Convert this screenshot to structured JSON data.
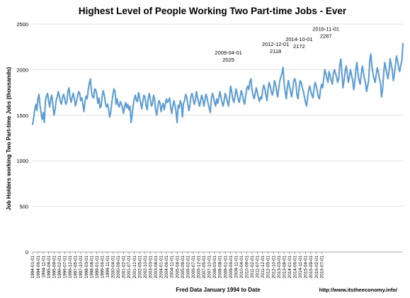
{
  "chart_data": {
    "type": "line",
    "title": "Highest Level of People Working Two Part-time Jobs - Ever",
    "xlabel": "Fred Data January 1994 to Date",
    "ylabel": "Job Holders working Two Part-time Jobs (thousands)",
    "source": "http://www.itstheeconomy.info/",
    "ylim": [
      0,
      2500
    ],
    "y_ticks": [
      0,
      500,
      1000,
      1500,
      2000,
      2500
    ],
    "x_tick_labels": [
      "1994-01-01",
      "1994-06-01",
      "1994-11-01",
      "1995-04-01",
      "1995-09-01",
      "1996-02-01",
      "1996-07-01",
      "1996-12-01",
      "1997-05-01",
      "1997-10-01",
      "1998-03-01",
      "1998-08-01",
      "1999-01-01",
      "1999-06-01",
      "1999-11-01",
      "2000-04-01",
      "2000-09-01",
      "2001-02-01",
      "2001-07-01",
      "2001-12-01",
      "2002-05-01",
      "2002-10-01",
      "2003-03-01",
      "2003-08-01",
      "2004-01-01",
      "2004-06-01",
      "2004-11-01",
      "2005-04-01",
      "2005-09-01",
      "2006-02-01",
      "2006-07-01",
      "2006-12-01",
      "2007-05-01",
      "2007-10-01",
      "2008-03-01",
      "2008-08-01",
      "2009-01-01",
      "2009-06-01",
      "2009-11-01",
      "2010-04-01",
      "2010-09-01",
      "2011-02-01",
      "2011-07-01",
      "2011-12-01",
      "2012-05-01",
      "2012-10-01",
      "2013-03-01",
      "2013-08-01",
      "2014-01-01",
      "2014-06-01",
      "2014-11-01",
      "2015-04-01",
      "2015-09-01",
      "2016-02-01",
      "2016-07-01"
    ],
    "series": [
      {
        "color": "#5b9bd5",
        "start": "1994-01-01",
        "frequency": "monthly",
        "values": [
          1400,
          1470,
          1560,
          1620,
          1550,
          1680,
          1730,
          1600,
          1520,
          1450,
          1530,
          1420,
          1660,
          1710,
          1740,
          1650,
          1590,
          1680,
          1720,
          1610,
          1500,
          1560,
          1660,
          1700,
          1760,
          1710,
          1650,
          1620,
          1700,
          1730,
          1680,
          1620,
          1640,
          1760,
          1800,
          1700,
          1640,
          1700,
          1740,
          1680,
          1600,
          1650,
          1710,
          1760,
          1740,
          1660,
          1690,
          1620,
          1540,
          1650,
          1710,
          1680,
          1780,
          1850,
          1900,
          1760,
          1700,
          1690,
          1790,
          1780,
          1720,
          1630,
          1690,
          1580,
          1600,
          1710,
          1770,
          1720,
          1640,
          1590,
          1620,
          1570,
          1480,
          1530,
          1640,
          1720,
          1790,
          1760,
          1620,
          1680,
          1610,
          1590,
          1650,
          1620,
          1580,
          1520,
          1600,
          1640,
          1580,
          1620,
          1560,
          1600,
          1420,
          1500,
          1610,
          1680,
          1720,
          1660,
          1650,
          1750,
          1690,
          1630,
          1570,
          1650,
          1720,
          1700,
          1610,
          1560,
          1680,
          1740,
          1680,
          1600,
          1620,
          1720,
          1680,
          1550,
          1500,
          1600,
          1660,
          1640,
          1540,
          1600,
          1630,
          1560,
          1620,
          1680,
          1640,
          1660,
          1690,
          1590,
          1520,
          1600,
          1660,
          1610,
          1540,
          1420,
          1610,
          1580,
          1660,
          1620,
          1480,
          1630,
          1660,
          1730,
          1700,
          1620,
          1550,
          1610,
          1710,
          1740,
          1680,
          1620,
          1660,
          1760,
          1700,
          1650,
          1600,
          1660,
          1720,
          1680,
          1600,
          1660,
          1730,
          1690,
          1630,
          1580,
          1530,
          1670,
          1740,
          1700,
          1640,
          1600,
          1680,
          1630,
          1690,
          1760,
          1700,
          1640,
          1600,
          1660,
          1740,
          1700,
          1650,
          1600,
          1700,
          1820,
          1760,
          1680,
          1640,
          1700,
          1790,
          1740,
          1680,
          1640,
          1700,
          1770,
          1730,
          1660,
          1620,
          1700,
          1790,
          1820,
          1780,
          1870,
          1900,
          1780,
          1720,
          1680,
          1740,
          1800,
          1750,
          1690,
          1650,
          1700,
          1680,
          1780,
          1830,
          1790,
          1720,
          1660,
          1790,
          1860,
          1820,
          1760,
          1720,
          1780,
          1880,
          1840,
          1760,
          1700,
          1800,
          1880,
          1920,
          1960,
          2025,
          1850,
          1760,
          1680,
          1800,
          1880,
          1820,
          1760,
          1700,
          1780,
          1880,
          1900,
          1850,
          1720,
          1680,
          1800,
          1880,
          1860,
          1800,
          1760,
          1700,
          1640,
          1600,
          1700,
          1780,
          1820,
          1760,
          1720,
          1690,
          1800,
          1860,
          1820,
          1760,
          1700,
          1680,
          1780,
          1840,
          1800,
          1900,
          2000,
          1960,
          1900,
          1860,
          1980,
          1940,
          1880,
          1840,
          1960,
          2000,
          1960,
          1920,
          1860,
          1900,
          2050,
          2118,
          1960,
          1800,
          1880,
          1980,
          2040,
          1960,
          1860,
          1920,
          2000,
          1940,
          1880,
          1780,
          1860,
          2000,
          2080,
          1960,
          1880,
          1840,
          1940,
          2040,
          1980,
          1900,
          1860,
          1760,
          1820,
          1880,
          2100,
          2172,
          2040,
          1960,
          1900,
          1860,
          1940,
          2020,
          1980,
          1900,
          1860,
          1700,
          1780,
          1960,
          2080,
          2020,
          1960,
          1900,
          1980,
          2120,
          2060,
          2000,
          1880,
          1950,
          2050,
          2150,
          2100,
          2020,
          1980,
          2050,
          2100,
          2287
        ]
      }
    ],
    "annotations": [
      {
        "date": "2009-04-01",
        "value": 2025,
        "label_date": "2009-04-01",
        "label_value": "2025"
      },
      {
        "date": "2012-12-01",
        "value": 2118,
        "label_date": "2012-12-01",
        "label_value": "2118"
      },
      {
        "date": "2014-10-01",
        "value": 2172,
        "label_date": "2014-10-01",
        "label_value": "2172"
      },
      {
        "date": "2016-11-01",
        "value": 2287,
        "label_date": "2016-11-01",
        "label_value": "2287"
      }
    ],
    "grid": true,
    "legend": "none"
  }
}
